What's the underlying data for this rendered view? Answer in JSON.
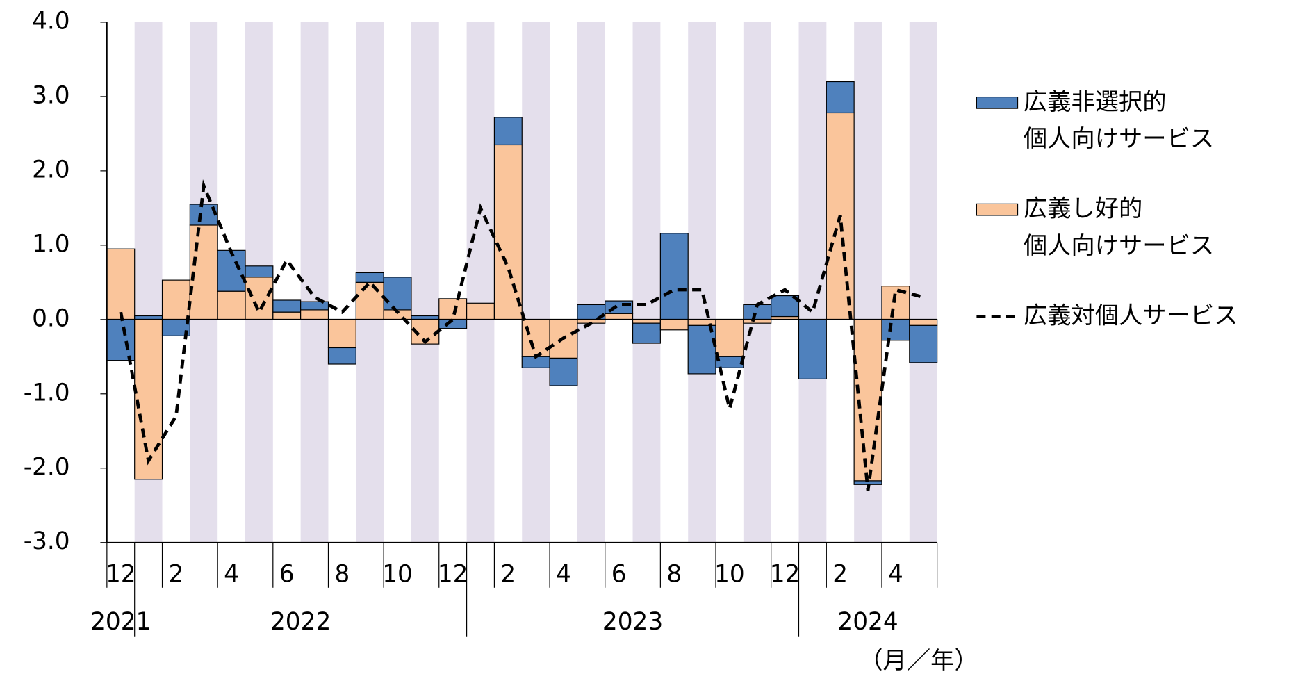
{
  "chart_data": {
    "type": "stacked-bar-line",
    "categories": [
      "12",
      null,
      "2",
      null,
      "4",
      null,
      "6",
      null,
      "8",
      null,
      "10",
      null,
      "12",
      null,
      "2",
      null,
      "4",
      null,
      "6",
      null,
      "8",
      null,
      "10",
      null,
      "12",
      null,
      "2",
      null,
      "4",
      null
    ],
    "year_groups": [
      {
        "label": "2021",
        "start": 0
      },
      {
        "label": "2022",
        "start": 1
      },
      {
        "label": "2023",
        "start": 13
      },
      {
        "label": "2024",
        "start": 25
      }
    ],
    "x_unit": "（月／年）",
    "series": [
      {
        "name": "広義し好的\n個人向けサービス",
        "color": "#fac59b",
        "kind": "bar",
        "values": [
          0.95,
          -2.15,
          0.53,
          1.27,
          0.38,
          0.57,
          0.1,
          0.13,
          -0.38,
          0.5,
          0.13,
          -0.33,
          0.28,
          0.22,
          2.35,
          -0.5,
          -0.52,
          -0.05,
          0.08,
          -0.05,
          -0.14,
          -0.08,
          -0.5,
          -0.05,
          0.04,
          0,
          2.78,
          -2.17,
          0.45,
          -0.08
        ]
      },
      {
        "name": "広義非選択的\n個人向けサービス",
        "color": "#4f81bd",
        "kind": "bar",
        "values": [
          -0.55,
          0.05,
          -0.22,
          0.28,
          0.55,
          0.15,
          0.16,
          0.11,
          -0.22,
          0.13,
          0.44,
          0.05,
          -0.12,
          0,
          0.37,
          -0.15,
          -0.37,
          0.2,
          0.17,
          -0.27,
          1.16,
          -0.65,
          -0.15,
          0.2,
          0.28,
          -0.8,
          0.42,
          -0.05,
          -0.28,
          -0.5
        ]
      },
      {
        "name": "広義対個人サービス",
        "color": "#000000",
        "kind": "line",
        "values": [
          0.1,
          -1.9,
          -1.3,
          1.8,
          0.9,
          0.1,
          0.8,
          0.3,
          0.1,
          0.5,
          0.1,
          -0.3,
          0.0,
          1.5,
          0.7,
          -0.5,
          -0.25,
          -0.05,
          0.2,
          0.2,
          0.4,
          0.4,
          -1.2,
          0.2,
          0.4,
          0.1,
          1.4,
          -2.3,
          0.4,
          0.3
        ]
      }
    ],
    "legend_order": [
      1,
      0,
      2
    ],
    "ylim": [
      -3,
      4
    ],
    "yticks": [
      {
        "value": -3,
        "label": "-3.0"
      },
      {
        "value": -2,
        "label": "-2.0"
      },
      {
        "value": -1,
        "label": "-1.0"
      },
      {
        "value": 0,
        "label": "0.0"
      },
      {
        "value": 1,
        "label": "1.0"
      },
      {
        "value": 2,
        "label": "2.0"
      },
      {
        "value": 3,
        "label": "3.0"
      },
      {
        "value": 4,
        "label": "4.0"
      }
    ],
    "band_color": "#e4dfec"
  }
}
